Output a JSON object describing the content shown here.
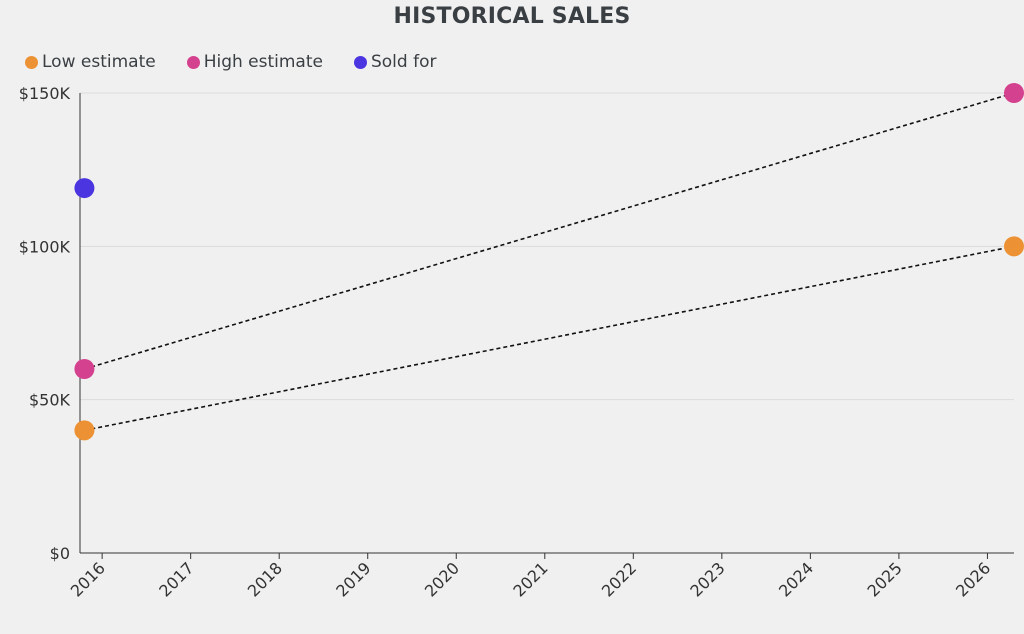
{
  "chart_data": {
    "type": "scatter",
    "title": "HISTORICAL SALES",
    "xlabel": "",
    "ylabel": "",
    "x_ticks": [
      "2016",
      "2017",
      "2018",
      "2019",
      "2020",
      "2021",
      "2022",
      "2023",
      "2024",
      "2025",
      "2026"
    ],
    "y_ticks": [
      "$0",
      "$50K",
      "$100K",
      "$150K"
    ],
    "y_tick_values": [
      0,
      50000,
      100000,
      150000
    ],
    "ylim": [
      0,
      150000
    ],
    "xlim": [
      2015.75,
      2026.3
    ],
    "grid": "horizontal",
    "legend_position": "top-left",
    "series": [
      {
        "name": "Low estimate",
        "color": "#ec9235",
        "points": [
          {
            "x": 2015.8,
            "y": 40000
          },
          {
            "x": 2026.3,
            "y": 100000
          }
        ],
        "connector": "dashed"
      },
      {
        "name": "High estimate",
        "color": "#d4418e",
        "points": [
          {
            "x": 2015.8,
            "y": 60000
          },
          {
            "x": 2026.3,
            "y": 150000
          }
        ],
        "connector": "dashed"
      },
      {
        "name": "Sold for",
        "color": "#4b35e0",
        "points": [
          {
            "x": 2015.8,
            "y": 119000
          }
        ],
        "connector": "none"
      }
    ]
  }
}
